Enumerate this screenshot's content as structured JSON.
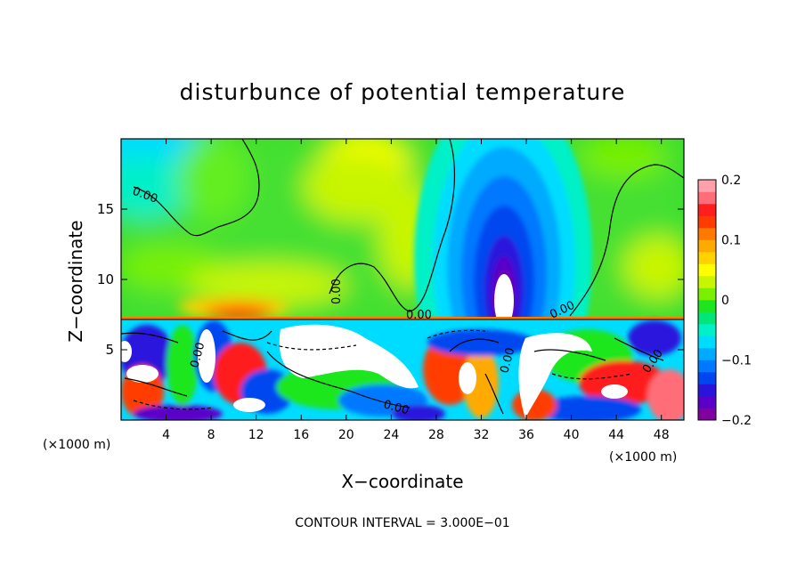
{
  "chart_data": {
    "type": "heatmap",
    "title": "disturbunce of potential temperature",
    "xlabel": "X−coordinate",
    "ylabel": "Z−coordinate",
    "x_unit_left": "(×1000 m)",
    "x_unit_right": "(×1000 m)",
    "xlim": [
      0,
      50
    ],
    "ylim": [
      0,
      20
    ],
    "x_ticks": [
      4,
      8,
      12,
      16,
      20,
      24,
      28,
      32,
      36,
      40,
      44,
      48
    ],
    "y_ticks": [
      5,
      10,
      15
    ],
    "color_range": [
      -0.2,
      0.2
    ],
    "colorbar_ticks": [
      {
        "value": 0.2,
        "label": "0.2"
      },
      {
        "value": 0.1,
        "label": "0.1"
      },
      {
        "value": 0,
        "label": "0"
      },
      {
        "value": -0.1,
        "label": "−0.1"
      },
      {
        "value": -0.2,
        "label": "−0.2"
      }
    ],
    "colorbar_colors": [
      "#8000a0",
      "#5a00c8",
      "#2a14dc",
      "#0046f0",
      "#0078ff",
      "#00aaff",
      "#00dcff",
      "#00f0c8",
      "#00e678",
      "#1ee61e",
      "#78f000",
      "#c8f500",
      "#ffff00",
      "#ffd200",
      "#ffaa00",
      "#ff7800",
      "#ff3c00",
      "#ff1e1e",
      "#ff6e78",
      "#ffa0aa"
    ],
    "contour_labels": [
      "0.00",
      "0.00",
      "0.00",
      "0.00",
      "0.00",
      "0.00",
      "0.00",
      "0.00"
    ],
    "contour_interval_label": "CONTOUR INTERVAL =  3.000E−01"
  }
}
